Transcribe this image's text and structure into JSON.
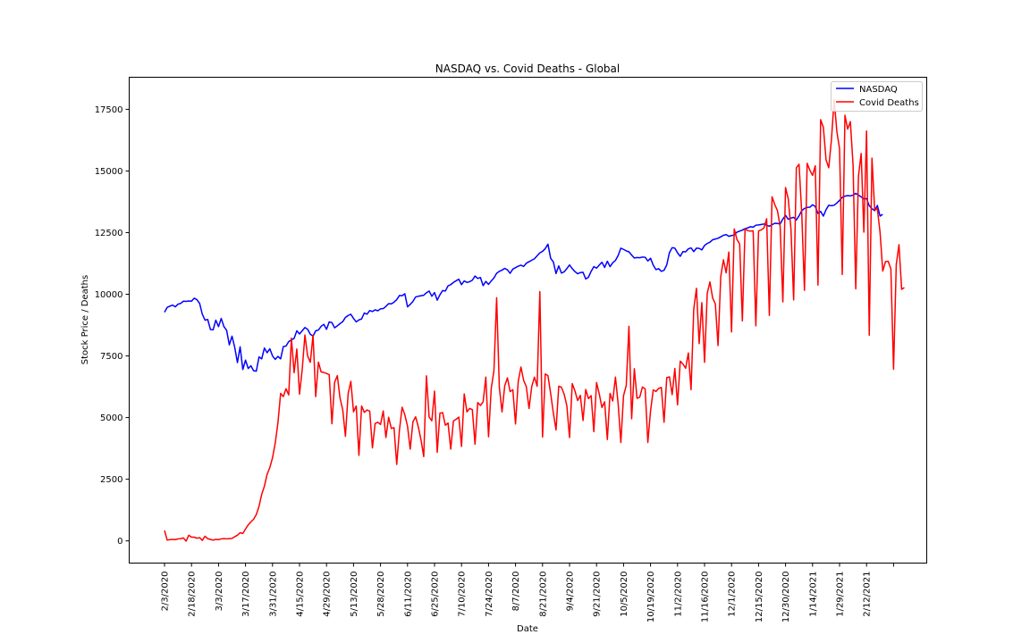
{
  "chart_data": {
    "type": "line",
    "title": "NASDAQ vs. Covid Deaths - Global",
    "xlabel": "Date",
    "ylabel": "Stock Price / Deaths",
    "ylim": [
      -900,
      18800
    ],
    "yticks": [
      0,
      2500,
      5000,
      7500,
      10000,
      12500,
      15000,
      17500
    ],
    "xtick_labels": [
      "2/3/2020",
      "2/18/2020",
      "3/3/2020",
      "3/17/2020",
      "3/31/2020",
      "4/15/2020",
      "4/29/2020",
      "5/13/2020",
      "5/28/2020",
      "6/11/2020",
      "6/25/2020",
      "7/10/2020",
      "7/24/2020",
      "8/7/2020",
      "8/21/2020",
      "9/4/2020",
      "9/21/2020",
      "10/5/2020",
      "10/19/2020",
      "11/2/2020",
      "11/16/2020",
      "12/1/2020",
      "12/15/2020",
      "12/30/2020",
      "1/14/2021",
      "1/29/2021",
      "2/12/2021",
      ""
    ],
    "legend": {
      "placement": "top-right"
    },
    "series": [
      {
        "name": "NASDAQ",
        "color": "#0000ff",
        "values": [
          9270,
          9470,
          9520,
          9560,
          9490,
          9600,
          9630,
          9720,
          9710,
          9730,
          9720,
          9840,
          9780,
          9630,
          9190,
          8950,
          8980,
          8570,
          8560,
          8950,
          8690,
          9020,
          8690,
          8540,
          7950,
          8300,
          7850,
          7230,
          7870,
          6950,
          7330,
          6990,
          7100,
          6900,
          6880,
          7460,
          7380,
          7820,
          7630,
          7790,
          7500,
          7360,
          7480,
          7380,
          7880,
          7900,
          8080,
          8150,
          8210,
          8520,
          8390,
          8520,
          8650,
          8580,
          8380,
          8300,
          8520,
          8550,
          8700,
          8780,
          8580,
          8880,
          8850,
          8640,
          8720,
          8810,
          8890,
          9060,
          9140,
          9190,
          9020,
          8880,
          8960,
          9000,
          9240,
          9190,
          9340,
          9300,
          9370,
          9330,
          9410,
          9420,
          9510,
          9620,
          9610,
          9680,
          9780,
          9950,
          9940,
          10020,
          9490,
          9590,
          9710,
          9890,
          9920,
          9940,
          9960,
          10060,
          10130,
          9920,
          10070,
          9760,
          9980,
          10150,
          10130,
          10340,
          10390,
          10480,
          10550,
          10610,
          10390,
          10540,
          10480,
          10510,
          10570,
          10740,
          10640,
          10680,
          10350,
          10520,
          10400,
          10540,
          10660,
          10850,
          10930,
          10980,
          11050,
          10990,
          10850,
          11020,
          11080,
          11140,
          11180,
          11130,
          11260,
          11320,
          11380,
          11440,
          11560,
          11680,
          11740,
          11850,
          12030,
          11460,
          11310,
          10840,
          11150,
          10860,
          10910,
          11040,
          11190,
          11040,
          10920,
          10830,
          10880,
          10890,
          10620,
          10690,
          10930,
          11120,
          11060,
          11180,
          11300,
          11090,
          11340,
          11120,
          11280,
          11370,
          11570,
          11870,
          11820,
          11760,
          11720,
          11590,
          11470,
          11490,
          11480,
          11510,
          11500,
          11350,
          11460,
          11180,
          11000,
          11040,
          10930,
          10970,
          11190,
          11690,
          11890,
          11870,
          11680,
          11540,
          11730,
          11720,
          11840,
          11880,
          11730,
          11870,
          11860,
          11800,
          11980,
          12060,
          12110,
          12210,
          12240,
          12270,
          12330,
          12390,
          12420,
          12350,
          12380,
          12400,
          12520,
          12560,
          12600,
          12660,
          12690,
          12740,
          12720,
          12800,
          12810,
          12830,
          12850,
          12800,
          12760,
          12820,
          12880,
          12870,
          12850,
          13050,
          13200,
          13040,
          13090,
          13120,
          13010,
          13180,
          13390,
          13480,
          13520,
          13530,
          13630,
          13560,
          13280,
          13360,
          13170,
          13430,
          13610,
          13590,
          13610,
          13700,
          13810,
          13930,
          13980,
          14000,
          13990,
          14020,
          14090,
          14020,
          13950,
          13870,
          13880,
          13590,
          13470,
          13390,
          13600,
          13170,
          13240
        ]
      },
      {
        "name": "Covid Deaths",
        "color": "#ff0000",
        "values": [
          420,
          30,
          50,
          60,
          50,
          80,
          90,
          120,
          -10,
          230,
          150,
          150,
          110,
          130,
          20,
          190,
          90,
          60,
          30,
          60,
          50,
          80,
          90,
          80,
          90,
          100,
          170,
          230,
          330,
          300,
          480,
          650,
          770,
          880,
          1070,
          1400,
          1890,
          2220,
          2700,
          2970,
          3370,
          3960,
          4780,
          5980,
          5850,
          6170,
          5920,
          8220,
          6820,
          7780,
          5950,
          6950,
          8350,
          7500,
          7240,
          8340,
          5850,
          7250,
          6850,
          6830,
          6790,
          6740,
          4750,
          6430,
          6700,
          5790,
          5320,
          4240,
          5970,
          6470,
          5230,
          5470,
          3470,
          5470,
          5210,
          5310,
          5260,
          3770,
          4760,
          4810,
          4720,
          5270,
          4190,
          5010,
          4560,
          4590,
          3100,
          4490,
          5420,
          5110,
          4650,
          3720,
          4830,
          5030,
          4620,
          4090,
          3420,
          6690,
          5020,
          4870,
          6070,
          3590,
          5180,
          5200,
          4690,
          4780,
          3720,
          4860,
          4930,
          5020,
          3830,
          5960,
          5230,
          5370,
          5320,
          3920,
          5610,
          5490,
          5640,
          6640,
          4220,
          6180,
          6900,
          9860,
          6230,
          5230,
          6290,
          6610,
          6050,
          6130,
          4740,
          6470,
          7050,
          6510,
          6250,
          5370,
          6260,
          6640,
          6270,
          10110,
          4210,
          6770,
          6700,
          5980,
          5190,
          4500,
          6270,
          6230,
          5950,
          5480,
          4190,
          6380,
          6080,
          5690,
          5900,
          4880,
          6140,
          5770,
          5890,
          4430,
          6420,
          5960,
          5410,
          5640,
          4110,
          5980,
          5670,
          6640,
          5560,
          3990,
          5890,
          6300,
          8700,
          4950,
          6980,
          5780,
          5830,
          6240,
          6160,
          3990,
          5270,
          6120,
          6060,
          6180,
          6220,
          4810,
          6620,
          6650,
          5930,
          6990,
          5520,
          7290,
          7170,
          7000,
          7620,
          6130,
          9390,
          10240,
          8000,
          9660,
          7240,
          10040,
          10500,
          9850,
          9610,
          7920,
          10720,
          11400,
          10870,
          11710,
          8470,
          12650,
          12220,
          12040,
          8920,
          12640,
          12580,
          12560,
          12570,
          8720,
          12570,
          12610,
          12690,
          13060,
          9140,
          13950,
          13640,
          13390,
          12750,
          9690,
          14330,
          13870,
          12650,
          9770,
          15130,
          15270,
          13280,
          10160,
          15310,
          15030,
          14820,
          15210,
          10370,
          17080,
          16770,
          15450,
          15130,
          16280,
          17900,
          16600,
          15900,
          10800,
          17260,
          16700,
          17000,
          15250,
          10220,
          14790,
          15710,
          12520,
          16620,
          8340,
          15520,
          13420,
          13460,
          12510,
          10940,
          11320,
          11340,
          11030,
          6960,
          11210,
          12010,
          10200,
          10270
        ]
      }
    ]
  }
}
